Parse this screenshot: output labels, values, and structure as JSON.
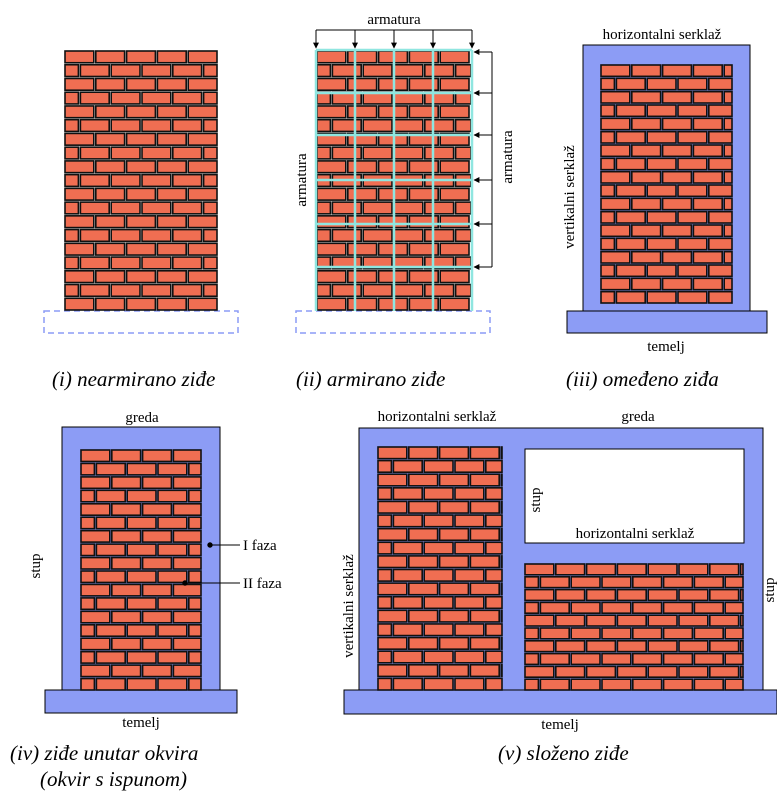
{
  "colors": {
    "brick": "#f06e52",
    "mortar": "#111111",
    "frame": "#8c9cf5",
    "rebar": "#8fe6e0",
    "dashed_foundation": "#8c9cf5"
  },
  "panel_i": {
    "caption": "(i) nearmirano ziđe"
  },
  "panel_ii": {
    "label_top": "armatura",
    "label_left": "armatura",
    "label_right": "armatura",
    "caption": "(ii)  armirano ziđe"
  },
  "panel_iii": {
    "label_top": "horizontalni serklaž",
    "label_left": "vertikalni serklaž",
    "label_bottom": "temelj",
    "caption": "(iii) omeđeno ziđa"
  },
  "panel_iv": {
    "label_top": "greda",
    "label_left": "stup",
    "label_phase1": "I faza",
    "label_phase2": "II faza",
    "label_bottom": "temelj",
    "caption_line1": "(iv)  ziđe unutar okvira",
    "caption_line2": "(okvir s ispunom)"
  },
  "panel_v": {
    "label_top_left": "horizontalni serklaž",
    "label_top_right": "greda",
    "label_left": "vertikalni serklaž",
    "label_inner_stup": "stup",
    "label_inner_horizontal": "horizontalni serklaž",
    "label_right": "stup",
    "label_bottom": "temelj",
    "caption": "(v) složeno ziđe"
  }
}
